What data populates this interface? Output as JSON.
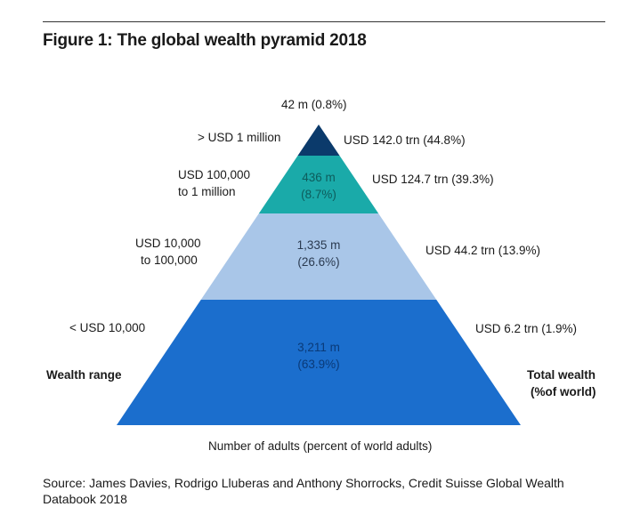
{
  "title": "Figure 1: The global wealth pyramid 2018",
  "chart_data": {
    "type": "pyramid",
    "title": "Figure 1: The global wealth pyramid 2018",
    "xlabel": "Number of adults (percent of world adults)",
    "left_axis_label": "Wealth range",
    "right_axis_label_line1": "Total wealth",
    "right_axis_label_line2": "(%of world)",
    "tiers": [
      {
        "range": "> USD 1 million",
        "adults_label_line1": "42 m (0.8%)",
        "adults_label_line2": "",
        "adults_m": 42,
        "adults_pct": 0.8,
        "wealth_label": "USD 142.0 trn (44.8%)",
        "wealth_trn": 142.0,
        "wealth_pct": 44.8,
        "color": "#0b3a6b"
      },
      {
        "range_line1": "USD 100,000",
        "range_line2": "to 1 million",
        "adults_label_line1": "436 m",
        "adults_label_line2": "(8.7%)",
        "adults_m": 436,
        "adults_pct": 8.7,
        "wealth_label": "USD 124.7 trn (39.3%)",
        "wealth_trn": 124.7,
        "wealth_pct": 39.3,
        "color": "#1aaaa9"
      },
      {
        "range_line1": "USD 10,000",
        "range_line2": "to 100,000",
        "adults_label_line1": "1,335 m",
        "adults_label_line2": "(26.6%)",
        "adults_m": 1335,
        "adults_pct": 26.6,
        "wealth_label": "USD 44.2 trn (13.9%)",
        "wealth_trn": 44.2,
        "wealth_pct": 13.9,
        "color": "#a9c6e8"
      },
      {
        "range": "< USD 10,000",
        "adults_label_line1": "3,211 m",
        "adults_label_line2": "(63.9%)",
        "adults_m": 3211,
        "adults_pct": 63.9,
        "wealth_label": "USD 6.2 trn (1.9%)",
        "wealth_trn": 6.2,
        "wealth_pct": 1.9,
        "color": "#1b6ecd"
      }
    ]
  },
  "source_line1": "Source: James Davies, Rodrigo Lluberas and Anthony Shorrocks, Credit Suisse Global Wealth",
  "source_line2": "Databook 2018"
}
